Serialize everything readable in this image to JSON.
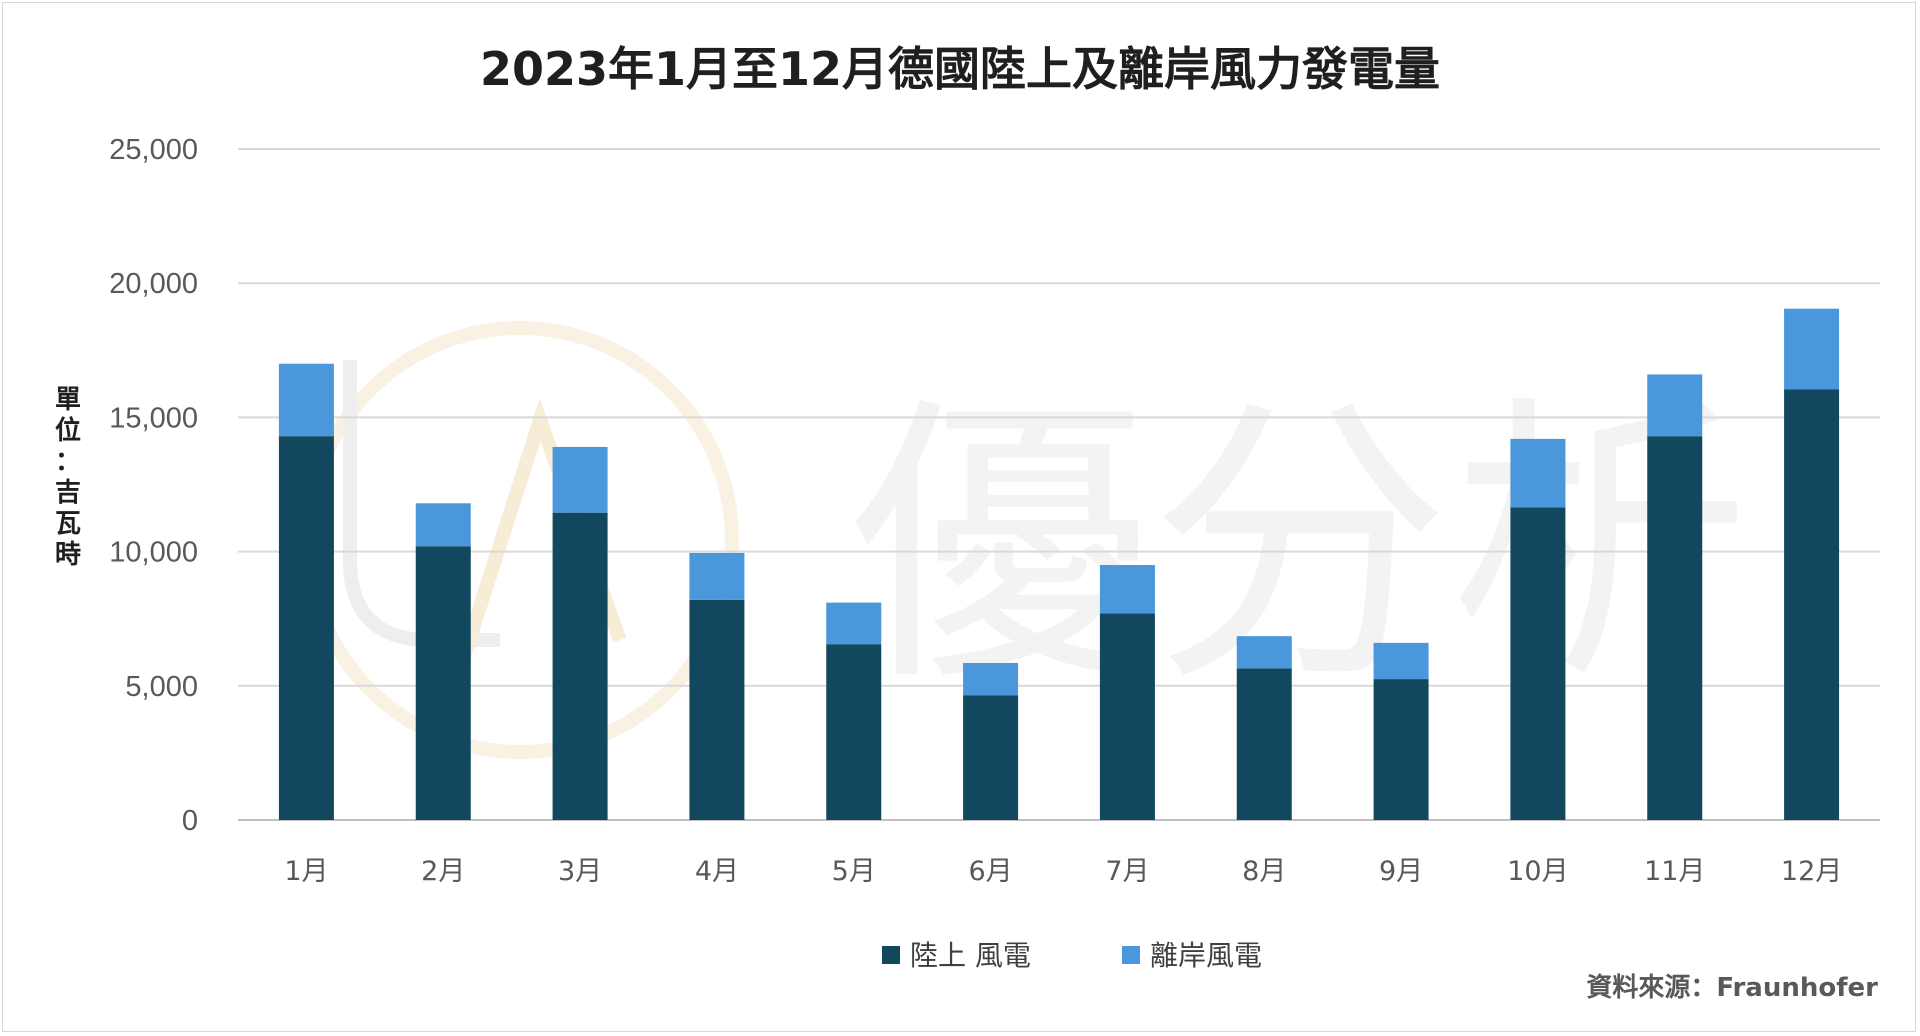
{
  "chart_data": {
    "type": "bar",
    "stacked": true,
    "title": "2023年1月至12月德國陸上及離岸風力發電量",
    "ylabel": "單位：吉瓦時",
    "xlabel": "",
    "categories": [
      "1月",
      "2月",
      "3月",
      "4月",
      "5月",
      "6月",
      "7月",
      "8月",
      "9月",
      "10月",
      "11月",
      "12月"
    ],
    "series": [
      {
        "name": "陸上 風電",
        "color": "#12485f",
        "values": [
          14300,
          10200,
          11450,
          8200,
          6550,
          4650,
          7700,
          5650,
          5250,
          11650,
          14300,
          16050
        ]
      },
      {
        "name": "離岸風電",
        "color": "#4a97dc",
        "values": [
          2700,
          1600,
          2450,
          1750,
          1550,
          1200,
          1800,
          1200,
          1350,
          2550,
          2300,
          3000
        ]
      }
    ],
    "ylim": [
      0,
      25000
    ],
    "yticks": [
      0,
      5000,
      10000,
      15000,
      20000,
      25000
    ],
    "ytick_labels": [
      "0",
      "5,000",
      "10,000",
      "15,000",
      "20,000",
      "25,000"
    ],
    "grid": true,
    "legend_position": "bottom-center"
  },
  "source": "資料來源：Fraunhofer",
  "watermark": {
    "text": "優分析",
    "logo": "UA"
  }
}
